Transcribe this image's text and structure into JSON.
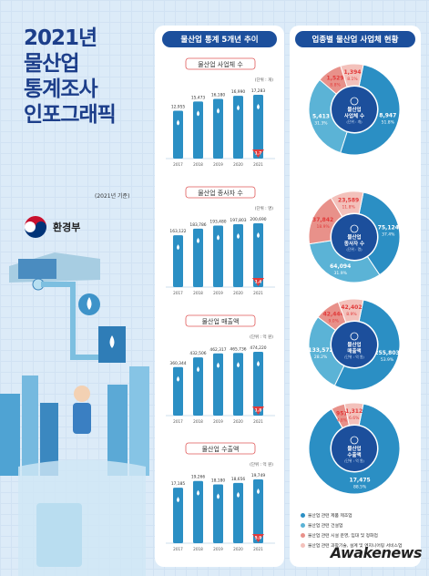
{
  "title": {
    "year": "2021년",
    "line2": "물산업",
    "line3": "통계조사",
    "line4": "인포그래픽"
  },
  "basis": "(2021년 기준)",
  "ministry": "환경부",
  "left_panel_header": "물산업 통계 5개년 추이",
  "right_panel_header": "업종별 물산업 사업체 현황",
  "watermark": "Awakenews",
  "colors": {
    "bar": "#2b8fc4",
    "bar_highlight": "#e23b3b",
    "navy": "#1c4f9c",
    "pie": [
      "#2b8fc4",
      "#5bb3d6",
      "#e8918a",
      "#f3c1bb"
    ]
  },
  "chart_data": [
    {
      "type": "bar",
      "title": "물산업 사업체 수",
      "unit": "(단위 : 개)",
      "categories": [
        "2017",
        "2018",
        "2019",
        "2020",
        "2021"
      ],
      "values": [
        12955,
        15473,
        16180,
        16990,
        17283
      ],
      "value_labels": [
        "12,955",
        "15,473",
        "16,180",
        "16,990",
        "17,283"
      ],
      "growth": "1.7"
    },
    {
      "type": "bar",
      "title": "물산업 종사자 수",
      "unit": "(단위 : 명)",
      "categories": [
        "2017",
        "2018",
        "2019",
        "2020",
        "2021"
      ],
      "values": [
        163122,
        183786,
        193480,
        197803,
        200690
      ],
      "value_labels": [
        "163,122",
        "183,786",
        "193,480",
        "197,803",
        "200,690"
      ],
      "growth": "1.4"
    },
    {
      "type": "bar",
      "title": "물산업 매출액",
      "unit": "(단위 : 억 원)",
      "categories": [
        "2017",
        "2018",
        "2019",
        "2020",
        "2021"
      ],
      "values": [
        360344,
        432506,
        462317,
        465736,
        474220
      ],
      "value_labels": [
        "360,344",
        "432,506",
        "462,317",
        "465,736",
        "474,220"
      ],
      "growth": "1.8"
    },
    {
      "type": "bar",
      "title": "물산업 수출액",
      "unit": "(단위 : 억 원)",
      "categories": [
        "2017",
        "2018",
        "2019",
        "2020",
        "2021"
      ],
      "values": [
        17185,
        19266,
        18180,
        18656,
        19749
      ],
      "value_labels": [
        "17,185",
        "19,266",
        "18,180",
        "18,656",
        "19,749"
      ],
      "growth": "5.9"
    },
    {
      "type": "pie",
      "center_label": "물산업 사업체 수",
      "center_unit": "(단위 : 개)",
      "slices": [
        {
          "value": 8947,
          "label": "8,947",
          "pct": "51.8%"
        },
        {
          "value": 5413,
          "label": "5,413",
          "pct": "31.3%"
        },
        {
          "value": 1529,
          "label": "1,529",
          "pct": "8.8%"
        },
        {
          "value": 1394,
          "label": "1,394",
          "pct": "8.1%"
        }
      ]
    },
    {
      "type": "pie",
      "center_label": "물산업 종사자 수",
      "center_unit": "(단위 : 명)",
      "slices": [
        {
          "value": 75124,
          "label": "75,124",
          "pct": "37.4%"
        },
        {
          "value": 64094,
          "label": "64,094",
          "pct": "31.9%"
        },
        {
          "value": 37842,
          "label": "37,842",
          "pct": "18.9%"
        },
        {
          "value": 23589,
          "label": "23,589",
          "pct": "11.8%"
        }
      ]
    },
    {
      "type": "pie",
      "center_label": "물산업 매출액",
      "center_unit": "(단위 : 억 원)",
      "slices": [
        {
          "value": 255803,
          "label": "255,803",
          "pct": "53.9%"
        },
        {
          "value": 133572,
          "label": "133,572",
          "pct": "28.2%"
        },
        {
          "value": 42444,
          "label": "42,444",
          "pct": "9.0%"
        },
        {
          "value": 42402,
          "label": "42,402",
          "pct": "8.9%"
        }
      ]
    },
    {
      "type": "pie",
      "center_label": "물산업 수출액",
      "center_unit": "(단위 : 억 원)",
      "slices": [
        {
          "value": 17475,
          "label": "17,475",
          "pct": "88.5%"
        },
        {
          "value": 11,
          "label": "11",
          "pct": "0.1%"
        },
        {
          "value": 951,
          "label": "951",
          "pct": "4.8%"
        },
        {
          "value": 1312,
          "label": "1,312",
          "pct": "6.6%"
        }
      ]
    }
  ],
  "legend": [
    "물산업 관련 제품 제조업",
    "물산업 관련 건설업",
    "물산업 관련 시설 운영, 임대 및 정화업",
    "물산업 관련 과학기술, 설계 및 엔지니어링 서비스업"
  ]
}
